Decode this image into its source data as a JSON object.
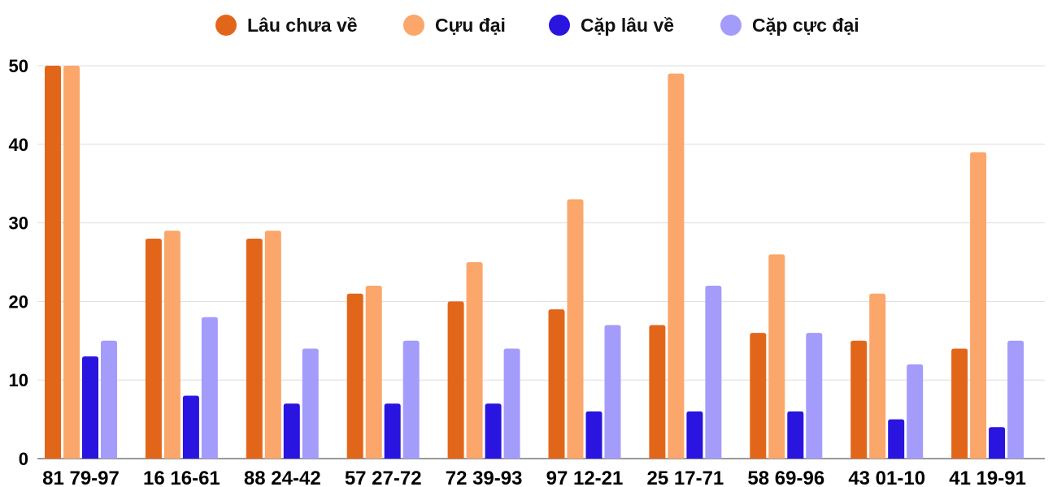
{
  "chart_data": {
    "type": "bar",
    "categories": [
      "81 79-97",
      "16 16-61",
      "88 24-42",
      "57 27-72",
      "72 39-93",
      "97 12-21",
      "25 17-71",
      "58 69-96",
      "43 01-10",
      "41 19-91"
    ],
    "series": [
      {
        "name": "Lâu chưa về",
        "color": "#e2661a",
        "values": [
          50,
          28,
          28,
          21,
          20,
          19,
          17,
          16,
          15,
          14
        ]
      },
      {
        "name": "Cựu đại",
        "color": "#fba66b",
        "values": [
          50,
          29,
          29,
          22,
          25,
          33,
          49,
          26,
          21,
          39
        ]
      },
      {
        "name": "Cặp lâu về",
        "color": "#2914e0",
        "values": [
          13,
          8,
          7,
          7,
          7,
          6,
          6,
          6,
          5,
          4
        ]
      },
      {
        "name": "Cặp cực đại",
        "color": "#a39cfb",
        "values": [
          15,
          18,
          14,
          15,
          14,
          17,
          22,
          16,
          12,
          15
        ]
      }
    ],
    "ylim": [
      0,
      50
    ],
    "yticks": [
      "0",
      "10",
      "20",
      "30",
      "40",
      "50"
    ],
    "grid": true,
    "legend_position": "top"
  }
}
